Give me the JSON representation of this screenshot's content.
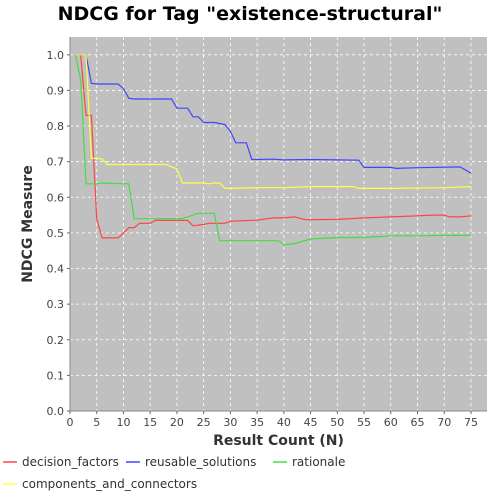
{
  "chart_data": {
    "type": "line",
    "title": "NDCG for Tag \"existence-structural\"",
    "xlabel": "Result Count (N)",
    "ylabel": "NDCG Measure",
    "xlim": [
      0,
      78
    ],
    "ylim": [
      0,
      1.05
    ],
    "xticks": [
      0,
      5,
      10,
      15,
      20,
      25,
      30,
      35,
      40,
      45,
      50,
      55,
      60,
      65,
      70,
      75
    ],
    "yticks": [
      0.0,
      0.1,
      0.2,
      0.3,
      0.4,
      0.5,
      0.6,
      0.7,
      0.8,
      0.9,
      1.0
    ],
    "grid": true,
    "legend_position": "bottom",
    "background": "#c0c0c0",
    "series": [
      {
        "name": "decision_factors",
        "color": "#ff4444",
        "points": [
          [
            1,
            1.0
          ],
          [
            2,
            1.0
          ],
          [
            3,
            0.83
          ],
          [
            4,
            0.83
          ],
          [
            5,
            0.54
          ],
          [
            6,
            0.486
          ],
          [
            7,
            0.486
          ],
          [
            8,
            0.486
          ],
          [
            9,
            0.486
          ],
          [
            10,
            0.5
          ],
          [
            11,
            0.515
          ],
          [
            12,
            0.515
          ],
          [
            13,
            0.527
          ],
          [
            14,
            0.527
          ],
          [
            15,
            0.527
          ],
          [
            16,
            0.535
          ],
          [
            17,
            0.535
          ],
          [
            18,
            0.535
          ],
          [
            19,
            0.535
          ],
          [
            20,
            0.535
          ],
          [
            21,
            0.535
          ],
          [
            22,
            0.535
          ],
          [
            23,
            0.52
          ],
          [
            24,
            0.522
          ],
          [
            25,
            0.524
          ],
          [
            26,
            0.527
          ],
          [
            27,
            0.527
          ],
          [
            28,
            0.527
          ],
          [
            29,
            0.527
          ],
          [
            30,
            0.533
          ],
          [
            35,
            0.536
          ],
          [
            38,
            0.542
          ],
          [
            40,
            0.542
          ],
          [
            42,
            0.545
          ],
          [
            44,
            0.537
          ],
          [
            50,
            0.538
          ],
          [
            55,
            0.542
          ],
          [
            60,
            0.545
          ],
          [
            65,
            0.548
          ],
          [
            68,
            0.55
          ],
          [
            70,
            0.55
          ],
          [
            71,
            0.545
          ],
          [
            73,
            0.545
          ],
          [
            75,
            0.548
          ]
        ]
      },
      {
        "name": "reusable_solutions",
        "color": "#4444ff",
        "points": [
          [
            1,
            1.0
          ],
          [
            3,
            1.0
          ],
          [
            4,
            0.92
          ],
          [
            5,
            0.918
          ],
          [
            9,
            0.918
          ],
          [
            10,
            0.905
          ],
          [
            11,
            0.878
          ],
          [
            12,
            0.876
          ],
          [
            19,
            0.876
          ],
          [
            20,
            0.85
          ],
          [
            22,
            0.85
          ],
          [
            23,
            0.826
          ],
          [
            24,
            0.826
          ],
          [
            25,
            0.81
          ],
          [
            27,
            0.81
          ],
          [
            29,
            0.804
          ],
          [
            30,
            0.785
          ],
          [
            31,
            0.753
          ],
          [
            33,
            0.753
          ],
          [
            34,
            0.706
          ],
          [
            38,
            0.707
          ],
          [
            40,
            0.705
          ],
          [
            45,
            0.706
          ],
          [
            50,
            0.705
          ],
          [
            54,
            0.704
          ],
          [
            55,
            0.684
          ],
          [
            60,
            0.684
          ],
          [
            61,
            0.681
          ],
          [
            65,
            0.683
          ],
          [
            72,
            0.685
          ],
          [
            73,
            0.685
          ],
          [
            75,
            0.668
          ]
        ]
      },
      {
        "name": "rationale",
        "color": "#44dd44",
        "points": [
          [
            1,
            1.0
          ],
          [
            2,
            0.93
          ],
          [
            3,
            0.638
          ],
          [
            5,
            0.638
          ],
          [
            6,
            0.64
          ],
          [
            10,
            0.638
          ],
          [
            11,
            0.638
          ],
          [
            12,
            0.54
          ],
          [
            20,
            0.54
          ],
          [
            21,
            0.54
          ],
          [
            23,
            0.55
          ],
          [
            24,
            0.555
          ],
          [
            27,
            0.555
          ],
          [
            28,
            0.478
          ],
          [
            30,
            0.478
          ],
          [
            38,
            0.478
          ],
          [
            39,
            0.478
          ],
          [
            40,
            0.467
          ],
          [
            42,
            0.47
          ],
          [
            45,
            0.483
          ],
          [
            50,
            0.487
          ],
          [
            55,
            0.487
          ],
          [
            60,
            0.492
          ],
          [
            65,
            0.492
          ],
          [
            70,
            0.493
          ],
          [
            75,
            0.493
          ]
        ]
      },
      {
        "name": "components_and_connectors",
        "color": "#ffff44",
        "points": [
          [
            1,
            1.0
          ],
          [
            3,
            1.0
          ],
          [
            4,
            0.71
          ],
          [
            6,
            0.708
          ],
          [
            7,
            0.692
          ],
          [
            10,
            0.692
          ],
          [
            15,
            0.692
          ],
          [
            18,
            0.692
          ],
          [
            19,
            0.685
          ],
          [
            20,
            0.68
          ],
          [
            21,
            0.64
          ],
          [
            25,
            0.64
          ],
          [
            26,
            0.638
          ],
          [
            27,
            0.64
          ],
          [
            28,
            0.64
          ],
          [
            29,
            0.625
          ],
          [
            30,
            0.625
          ],
          [
            35,
            0.627
          ],
          [
            40,
            0.627
          ],
          [
            45,
            0.63
          ],
          [
            50,
            0.63
          ],
          [
            53,
            0.63
          ],
          [
            54,
            0.625
          ],
          [
            55,
            0.625
          ],
          [
            60,
            0.625
          ],
          [
            70,
            0.627
          ],
          [
            75,
            0.63
          ]
        ]
      }
    ]
  }
}
